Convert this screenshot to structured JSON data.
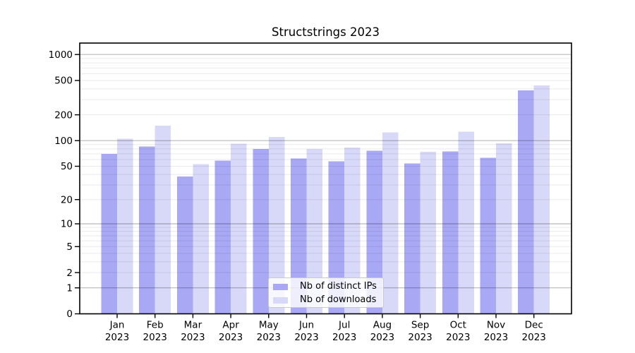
{
  "figure": {
    "background": "#ffffff"
  },
  "chart_data": {
    "type": "bar",
    "title": "Structstrings 2023",
    "categories": [
      "Jan",
      "Feb",
      "Mar",
      "Apr",
      "May",
      "Jun",
      "Jul",
      "Aug",
      "Sep",
      "Oct",
      "Nov",
      "Dec"
    ],
    "x_tick_second_line": "2023",
    "series": [
      {
        "name": "Nb of distinct IPs",
        "color": "#a8a8f5",
        "values": [
          70,
          85,
          38,
          58,
          80,
          62,
          57,
          76,
          54,
          75,
          63,
          385
        ]
      },
      {
        "name": "Nb of downloads",
        "color": "#d8d8f8",
        "values": [
          105,
          150,
          53,
          92,
          110,
          80,
          83,
          125,
          74,
          127,
          93,
          440
        ]
      }
    ],
    "xlabel": "",
    "ylabel": "",
    "y_ticks": [
      0,
      1,
      2,
      5,
      10,
      20,
      50,
      100,
      200,
      500,
      1000
    ],
    "y_scale": "log10(1+value)",
    "ylim": [
      0,
      1360
    ],
    "grid": {
      "enabled": true,
      "major_color": "#b8b8b8",
      "minor_color": "#eaeaea"
    },
    "legend_position": "bottom-center",
    "axis_color": "#000000",
    "text_color": "#000000"
  }
}
